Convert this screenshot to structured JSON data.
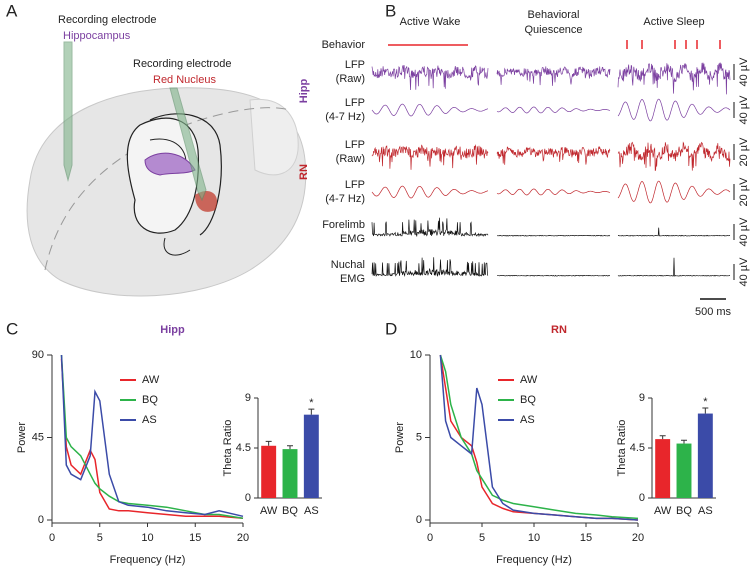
{
  "panel_labels": [
    "A",
    "B",
    "C",
    "D"
  ],
  "panel_a": {
    "electrodes": [
      {
        "label": "Recording electrode",
        "region": "Hippocampus"
      },
      {
        "label": "Recording electrode",
        "region": "Red Nucleus"
      }
    ]
  },
  "panel_b": {
    "columns": [
      [
        "Active Wake"
      ],
      [
        "Behavioral",
        "Quiescence"
      ],
      [
        "Active Sleep"
      ]
    ],
    "groups": [
      "Hipp",
      "RN"
    ],
    "rows": [
      [
        "Behavior"
      ],
      [
        "LFP",
        "(Raw)"
      ],
      [
        "LFP",
        "(4-7 Hz)"
      ],
      [
        "LFP",
        "(Raw)"
      ],
      [
        "LFP",
        "(4-7 Hz)"
      ],
      [
        "Forelimb",
        "EMG"
      ],
      [
        "Nuchal",
        "EMG"
      ]
    ],
    "scale_bars": [
      "40 µV",
      "40 µV",
      "20 µV",
      "20 µV",
      "40 µV",
      "40 µV"
    ],
    "time_scale": "500 ms"
  },
  "chart_data": [
    {
      "type": "line",
      "title": "Hipp",
      "xlabel": "Frequency (Hz)",
      "ylabel": "Power",
      "x": [
        1,
        1.5,
        2,
        3,
        4,
        4.5,
        5,
        6,
        7,
        8,
        10,
        12,
        14,
        16,
        17.5,
        20
      ],
      "xlim": [
        0,
        20
      ],
      "xticks": [
        0,
        5,
        10,
        15,
        20
      ],
      "ylim": [
        0,
        90
      ],
      "yticks": [
        0,
        45,
        90
      ],
      "series": [
        {
          "name": "AW",
          "color": "#e8262b",
          "values": [
            88,
            40,
            30,
            25,
            38,
            33,
            15,
            6,
            5,
            5,
            4,
            3,
            2,
            2,
            2,
            1
          ]
        },
        {
          "name": "BQ",
          "color": "#2db34a",
          "values": [
            90,
            45,
            40,
            35,
            25,
            20,
            17,
            13,
            10,
            9,
            8,
            7,
            5,
            3,
            3,
            1
          ]
        },
        {
          "name": "AS",
          "color": "#3b4ba8",
          "values": [
            90,
            30,
            25,
            22,
            35,
            70,
            65,
            25,
            10,
            8,
            7,
            5,
            4,
            3,
            5,
            2
          ]
        }
      ]
    },
    {
      "type": "bar",
      "ylabel": "Theta Ratio",
      "categories": [
        "AW",
        "BQ",
        "AS"
      ],
      "values": [
        4.7,
        4.4,
        7.5
      ],
      "errors": [
        0.4,
        0.3,
        0.5
      ],
      "colors": [
        "#e8262b",
        "#2db34a",
        "#3b4ba8"
      ],
      "significance": [
        null,
        null,
        "*"
      ],
      "ylim": [
        0,
        9
      ],
      "yticks": [
        0,
        4.5,
        9
      ]
    },
    {
      "type": "line",
      "title": "RN",
      "xlabel": "Frequency (Hz)",
      "ylabel": "Power",
      "x": [
        1,
        1.5,
        2,
        3,
        4,
        4.5,
        5,
        6,
        7,
        8,
        10,
        12,
        14,
        16,
        17.5,
        20
      ],
      "xlim": [
        0,
        20
      ],
      "xticks": [
        0,
        5,
        10,
        15,
        20
      ],
      "ylim": [
        0,
        10
      ],
      "yticks": [
        0,
        5,
        10
      ],
      "series": [
        {
          "name": "AW",
          "color": "#e8262b",
          "values": [
            10,
            8,
            6,
            5,
            4.5,
            3.5,
            2,
            1,
            0.7,
            0.5,
            0.4,
            0.3,
            0.2,
            0.1,
            0.1,
            0
          ]
        },
        {
          "name": "BQ",
          "color": "#2db34a",
          "values": [
            10,
            9,
            7,
            5,
            4,
            3,
            2.5,
            1.5,
            1.2,
            1,
            0.8,
            0.6,
            0.4,
            0.3,
            0.2,
            0.1
          ]
        },
        {
          "name": "AS",
          "color": "#3b4ba8",
          "values": [
            10,
            6,
            5,
            4.5,
            4,
            8,
            7,
            2,
            1,
            0.6,
            0.4,
            0.3,
            0.2,
            0.1,
            0.1,
            0
          ]
        }
      ]
    },
    {
      "type": "bar",
      "ylabel": "Theta Ratio",
      "categories": [
        "AW",
        "BQ",
        "AS"
      ],
      "values": [
        5.3,
        4.9,
        7.6
      ],
      "errors": [
        0.3,
        0.3,
        0.5
      ],
      "colors": [
        "#e8262b",
        "#2db34a",
        "#3b4ba8"
      ],
      "significance": [
        null,
        null,
        "*"
      ],
      "ylim": [
        0,
        9
      ],
      "yticks": [
        0,
        4.5,
        9
      ]
    }
  ]
}
